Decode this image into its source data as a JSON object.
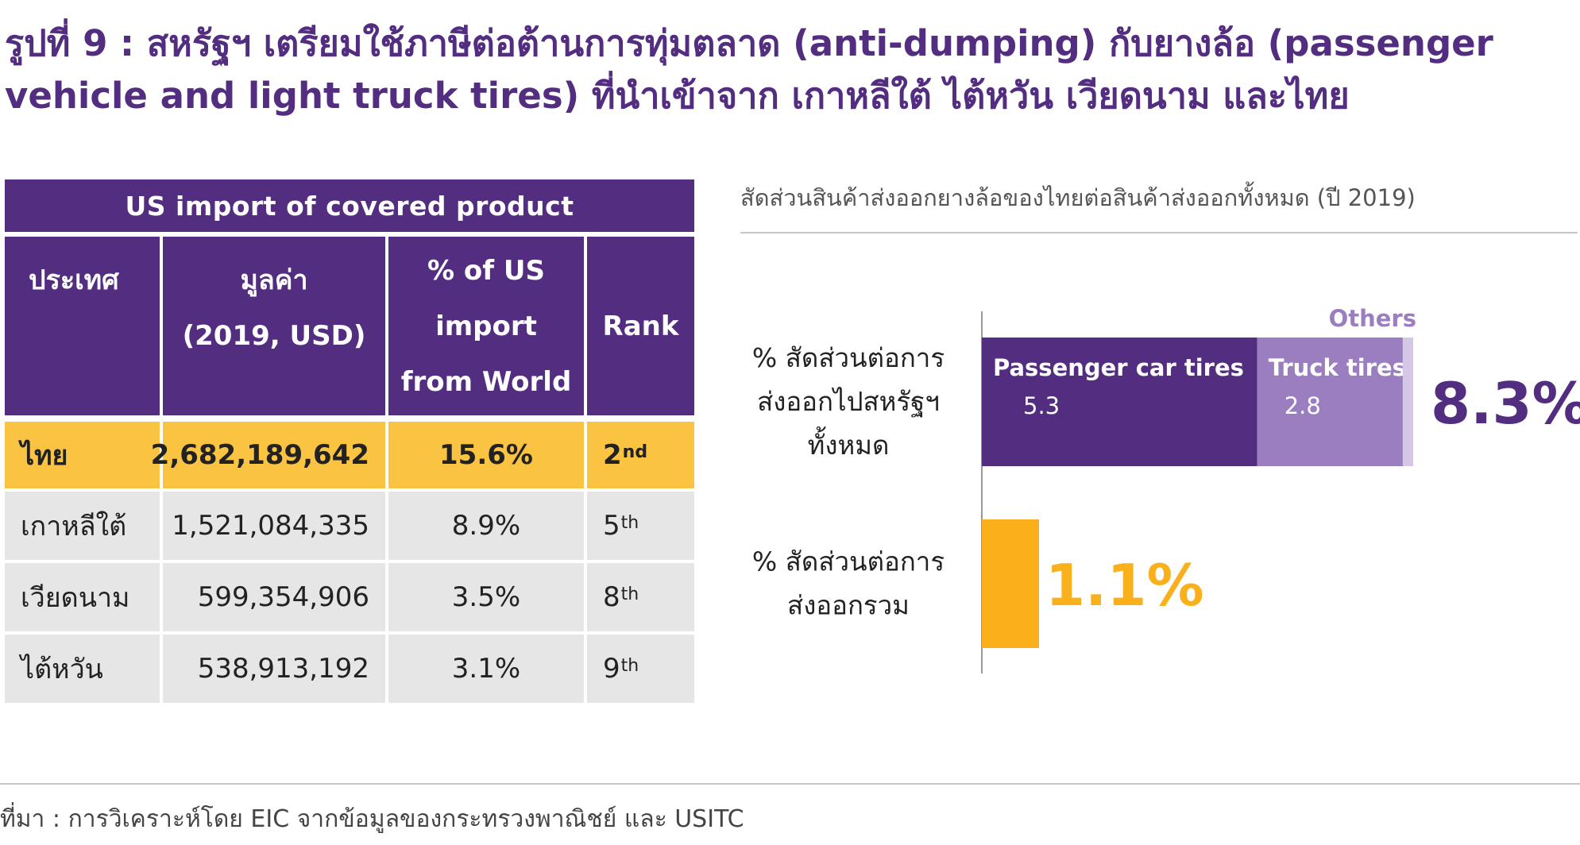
{
  "title": "รูปที่ 9 : สหรัฐฯ เตรียมใช้ภาษีต่อต้านการทุ่มตลาด (anti-dumping) กับยางล้อ (passenger vehicle and light truck tires) ที่นำเข้าจาก เกาหลีใต้ ไต้หวัน เวียดนาม และไทย",
  "table": {
    "header": "US import of covered product",
    "columns": {
      "country": "ประเทศ",
      "value_line1": "มูลค่า",
      "value_line2": "(2019, USD)",
      "pct_line1": "% of US",
      "pct_line2": "import",
      "pct_line3": "from World",
      "rank": "Rank"
    },
    "rows": [
      {
        "country": "ไทย",
        "value": "2,682,189,642",
        "pct": "15.6%",
        "rank_num": "2",
        "rank_suffix": "nd"
      },
      {
        "country": "เกาหลีใต้",
        "value": "1,521,084,335",
        "pct": "8.9%",
        "rank_num": "5",
        "rank_suffix": "th"
      },
      {
        "country": "เวียดนาม",
        "value": "599,354,906",
        "pct": "3.5%",
        "rank_num": "8",
        "rank_suffix": "th"
      },
      {
        "country": "ไต้หวัน",
        "value": "538,913,192",
        "pct": "3.1%",
        "rank_num": "9",
        "rank_suffix": "th"
      }
    ]
  },
  "source": "ที่มา : การวิเคราะห์โดย EIC จากข้อมูลของกระทรวงพาณิชย์ และ USITC",
  "colors": {
    "purple": "#522d80",
    "light_purple": "#9a7ec0",
    "lightest_purple": "#d4c8e6",
    "highlight_row": "#fbc342",
    "orange": "#f9b01a",
    "gray_row": "#e6e6e6"
  },
  "chart_data": {
    "type": "bar",
    "orientation": "horizontal",
    "stacked": true,
    "title": "สัดส่วนสินค้าส่งออกยางล้อของไทยต่อสินค้าส่งออกทั้งหมด (ปี 2019)",
    "categories": [
      [
        "% สัดส่วนต่อการ",
        "ส่งออกไปสหรัฐฯ",
        "ทั้งหมด"
      ],
      [
        "% สัดส่วนต่อการ",
        "ส่งออกรวม"
      ]
    ],
    "series": [
      {
        "name": "Passenger car tires",
        "values": [
          5.3,
          null
        ],
        "value_label": "5.3",
        "color": "#522d80"
      },
      {
        "name": "Truck tires",
        "values": [
          2.8,
          null
        ],
        "value_label": "2.8",
        "color": "#9a7ec0"
      },
      {
        "name": "Others",
        "values": [
          0.2,
          null
        ],
        "value_label": null,
        "color": "#d4c8e6"
      },
      {
        "name": "",
        "values": [
          null,
          1.1
        ],
        "value_label": null,
        "color": "#f9b01a"
      }
    ],
    "totals": [
      "8.3%",
      "1.1%"
    ],
    "xlim": [
      0,
      8.3
    ],
    "grid": false,
    "legend": "inline"
  }
}
